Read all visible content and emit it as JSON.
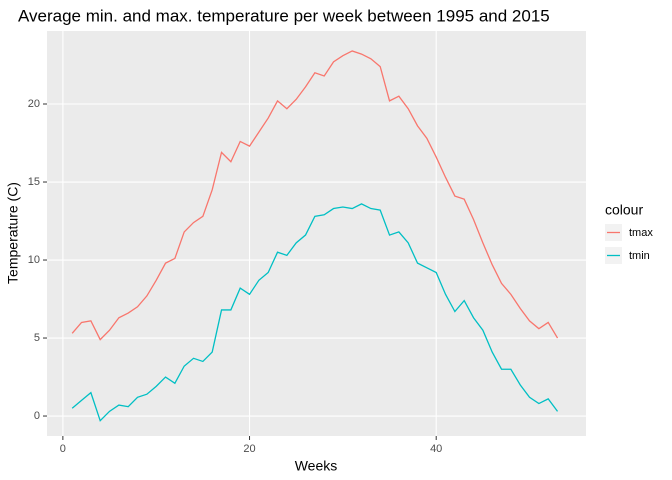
{
  "chart_data": {
    "type": "line",
    "title": "Average min. and max. temperature per week between 1995 and 2015",
    "x_label": "Weeks",
    "y_label": "Temperature (C)",
    "legend_title": "colour",
    "legend_position": "right",
    "x": [
      1,
      2,
      3,
      4,
      5,
      6,
      7,
      8,
      9,
      10,
      11,
      12,
      13,
      14,
      15,
      16,
      17,
      18,
      19,
      20,
      21,
      22,
      23,
      24,
      25,
      26,
      27,
      28,
      29,
      30,
      31,
      32,
      33,
      34,
      35,
      36,
      37,
      38,
      39,
      40,
      41,
      42,
      43,
      44,
      45,
      46,
      47,
      48,
      49,
      50,
      51,
      52,
      53
    ],
    "series": [
      {
        "name": "tmax",
        "color": "#F8766D",
        "values": [
          5.3,
          6.0,
          6.1,
          4.9,
          5.5,
          6.3,
          6.6,
          7.0,
          7.7,
          8.7,
          9.8,
          10.1,
          11.8,
          12.4,
          12.8,
          14.5,
          16.9,
          16.3,
          17.6,
          17.3,
          18.2,
          19.1,
          20.2,
          19.7,
          20.3,
          21.1,
          22.0,
          21.8,
          22.7,
          23.1,
          23.4,
          23.2,
          22.9,
          22.4,
          20.2,
          20.5,
          19.7,
          18.6,
          17.8,
          16.6,
          15.3,
          14.1,
          13.9,
          12.6,
          11.1,
          9.7,
          8.5,
          7.8,
          6.9,
          6.1,
          5.6,
          6.0,
          5.0
        ]
      },
      {
        "name": "tmin",
        "color": "#00BFC4",
        "values": [
          0.5,
          1.0,
          1.5,
          -0.3,
          0.3,
          0.7,
          0.6,
          1.2,
          1.4,
          1.9,
          2.5,
          2.1,
          3.2,
          3.7,
          3.5,
          4.1,
          6.8,
          6.8,
          8.2,
          7.8,
          8.7,
          9.2,
          10.5,
          10.3,
          11.1,
          11.6,
          12.8,
          12.9,
          13.3,
          13.4,
          13.3,
          13.6,
          13.3,
          13.2,
          11.6,
          11.8,
          11.1,
          9.8,
          9.5,
          9.2,
          7.8,
          6.7,
          7.4,
          6.3,
          5.5,
          4.1,
          3.0,
          3.0,
          2.0,
          1.2,
          0.8,
          1.1,
          0.3
        ]
      }
    ],
    "xlim": [
      -1.7,
      56.05
    ],
    "xticks": [
      0,
      20,
      40
    ],
    "ylim": [
      -1.28,
      24.68
    ],
    "yticks": [
      0,
      5,
      10,
      15,
      20
    ],
    "grid": true
  }
}
